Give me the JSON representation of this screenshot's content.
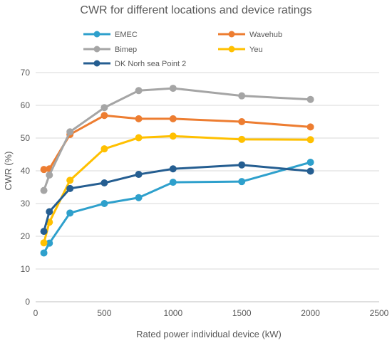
{
  "chart_data": {
    "type": "line",
    "title": "CWR for different locations and device ratings",
    "xlabel": "Rated power individual device (kW)",
    "ylabel": "CWR (%)",
    "xlim": [
      0,
      2500
    ],
    "ylim": [
      0,
      70
    ],
    "xticks": [
      0,
      500,
      1000,
      1500,
      2000,
      2500
    ],
    "yticks": [
      0,
      10,
      20,
      30,
      40,
      50,
      60,
      70
    ],
    "grid": "horizontal",
    "legend_placement": "top",
    "x": [
      60,
      100,
      250,
      500,
      750,
      1000,
      1500,
      2000
    ],
    "series": [
      {
        "name": "EMEC",
        "color": "#2ea0cc",
        "values": [
          14.9,
          17.9,
          27.1,
          30.0,
          31.8,
          36.5,
          36.7,
          42.6
        ]
      },
      {
        "name": "Wavehub",
        "color": "#ed7d31",
        "values": [
          40.4,
          40.6,
          51.1,
          56.9,
          55.9,
          55.9,
          55.0,
          53.4
        ]
      },
      {
        "name": "Bimep",
        "color": "#a5a5a5",
        "values": [
          34.0,
          38.7,
          51.9,
          59.3,
          64.5,
          65.2,
          62.9,
          61.8
        ]
      },
      {
        "name": "Yeu",
        "color": "#ffc000",
        "values": [
          18.0,
          24.3,
          37.1,
          46.7,
          50.1,
          50.6,
          49.6,
          49.5
        ]
      },
      {
        "name": "DK Norh sea Point 2",
        "color": "#255e91",
        "values": [
          21.5,
          27.5,
          34.6,
          36.3,
          38.9,
          40.6,
          41.8,
          39.9
        ]
      }
    ]
  }
}
